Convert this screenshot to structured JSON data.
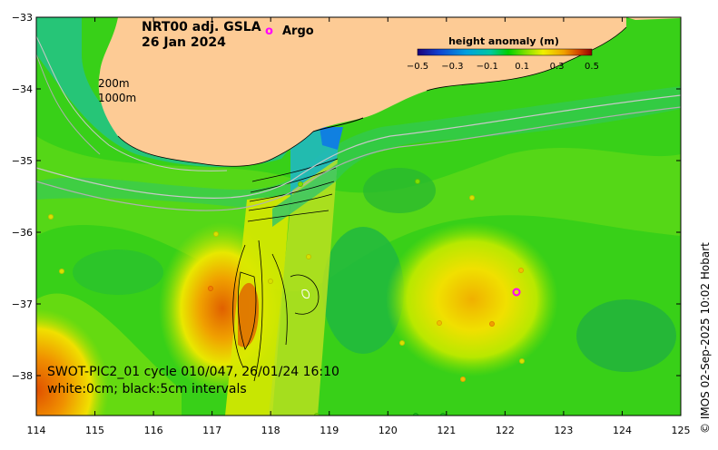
{
  "map": {
    "title_line1": "NRT00 adj. GSLA",
    "title_line2": "26 Jan 2024",
    "argo_symbol": "o",
    "argo_label": "Argo",
    "argo_color": "#ff00ff",
    "depth_labels": [
      "200m",
      "1000m"
    ],
    "swot_line1": "SWOT-PIC2_01 cycle 010/047, 26/01/24 16:10",
    "swot_line2": "white:0cm; black:5cm intervals",
    "credit": "© IMOS 02-Sep-2025 10:02 Hobart",
    "land_color": "#fdcb95"
  },
  "colorbar": {
    "title": "height anomaly (m)",
    "ticks": [
      "−0.5",
      "−0.3",
      "−0.1",
      "0.1",
      "0.3",
      "0.5"
    ],
    "colors": [
      "#1a007a",
      "#1040d0",
      "#00a0e0",
      "#00c8a0",
      "#00d000",
      "#80e000",
      "#f0f000",
      "#f0a000",
      "#d04000",
      "#900000"
    ]
  },
  "axes": {
    "x_ticks": [
      "114",
      "115",
      "116",
      "117",
      "118",
      "119",
      "120",
      "121",
      "122",
      "123",
      "124",
      "125"
    ],
    "y_ticks": [
      "−33",
      "−34",
      "−35",
      "−36",
      "−37",
      "−38"
    ],
    "x_range": [
      114,
      125
    ],
    "y_range": [
      -38.5,
      -33
    ]
  }
}
